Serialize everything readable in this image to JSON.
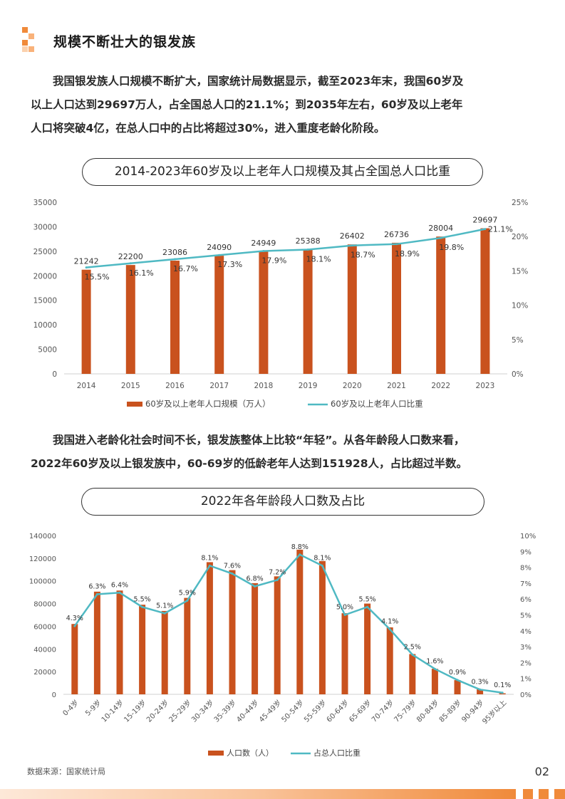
{
  "page": {
    "title": "规模不断壮大的银发族",
    "page_number": "02",
    "source": "数据来源：国家统计局",
    "colors": {
      "bar": "#c9521e",
      "line": "#4fb9c3",
      "accent": "#f08a3a"
    }
  },
  "paragraph1": {
    "lines": [
      "我国银发族人口规模不断扩大，国家统计局数据显示，截至2023年末，我国60岁及",
      "以上人口达到29697万人，占全国总人口的21.1%；到2035年左右，60岁及以上老年",
      "人口将突破4亿，在总人口中的占比将超过30%，进入重度老龄化阶段。"
    ]
  },
  "paragraph2": {
    "lines": [
      "我国进入老龄化社会时间不长，银发族整体上比较“年轻”。从各年龄段人口数来看，",
      "2022年60岁及以上银发族中，60-69岁的低龄老年人达到151928人，占比超过半数。"
    ]
  },
  "chart_data": [
    {
      "type": "bar",
      "title": "2014-2023年60岁及以上老年人口规模及其占全国总人口比重",
      "categories": [
        "2014",
        "2015",
        "2016",
        "2017",
        "2018",
        "2019",
        "2020",
        "2021",
        "2022",
        "2023"
      ],
      "series": [
        {
          "name": "60岁及以上老年人口规模（万人）",
          "type": "bar",
          "axis": "left",
          "values": [
            21242,
            22200,
            23086,
            24090,
            24949,
            25388,
            26402,
            26736,
            28004,
            29697
          ],
          "labels": [
            "21242",
            "22200",
            "23086",
            "24090",
            "24949",
            "25388",
            "26402",
            "26736",
            "28004",
            "29697"
          ]
        },
        {
          "name": "60岁及以上老年人口比重",
          "type": "line",
          "axis": "right",
          "values": [
            15.5,
            16.1,
            16.7,
            17.3,
            17.9,
            18.1,
            18.7,
            18.9,
            19.8,
            21.1
          ],
          "labels": [
            "15.5%",
            "16.1%",
            "16.7%",
            "17.3%",
            "17.9%",
            "18.1%",
            "18.7%",
            "18.9%",
            "19.8%",
            "21.1%"
          ]
        }
      ],
      "ylim_left": [
        0,
        35000
      ],
      "yticks_left": [
        "0",
        "5000",
        "10000",
        "15000",
        "20000",
        "25000",
        "30000",
        "35000"
      ],
      "ylim_right": [
        0,
        25
      ],
      "yticks_right": [
        "0%",
        "5%",
        "10%",
        "15%",
        "20%",
        "25%"
      ],
      "legend": "bottom"
    },
    {
      "type": "bar",
      "title": "2022年各年龄段人口数及占比",
      "categories": [
        "0-4岁",
        "5-9岁",
        "10-14岁",
        "15-19岁",
        "20-24岁",
        "25-29岁",
        "30-34岁",
        "35-39岁",
        "40-44岁",
        "45-49岁",
        "50-54岁",
        "55-59岁",
        "60-64岁",
        "65-69岁",
        "70-74岁",
        "75-79岁",
        "80-84岁",
        "85-89岁",
        "90-94岁",
        "95岁以上"
      ],
      "series": [
        {
          "name": "人口数（人）",
          "type": "bar",
          "axis": "left",
          "values": [
            62000,
            90500,
            91500,
            79000,
            73500,
            85000,
            116500,
            109500,
            98000,
            104000,
            127500,
            117500,
            71500,
            80000,
            59000,
            35500,
            22500,
            12500,
            4500,
            900
          ]
        },
        {
          "name": "占总人口比重",
          "type": "line",
          "axis": "right",
          "values": [
            4.3,
            6.3,
            6.4,
            5.5,
            5.1,
            5.9,
            8.1,
            7.6,
            6.8,
            7.2,
            8.8,
            8.1,
            5.0,
            5.5,
            4.1,
            2.5,
            1.6,
            0.9,
            0.3,
            0.1
          ],
          "labels": [
            "4.3%",
            "6.3%",
            "6.4%",
            "5.5%",
            "5.1%",
            "5.9%",
            "8.1%",
            "7.6%",
            "6.8%",
            "7.2%",
            "8.8%",
            "8.1%",
            "5.0%",
            "5.5%",
            "4.1%",
            "2.5%",
            "1.6%",
            "0.9%",
            "0.3%",
            "0.1%"
          ]
        }
      ],
      "ylim_left": [
        0,
        140000
      ],
      "yticks_left": [
        "0",
        "20000",
        "40000",
        "60000",
        "80000",
        "100000",
        "120000",
        "140000"
      ],
      "ylim_right": [
        0,
        10
      ],
      "yticks_right": [
        "0%",
        "1%",
        "2%",
        "3%",
        "4%",
        "5%",
        "6%",
        "7%",
        "8%",
        "9%",
        "10%"
      ],
      "legend": "bottom"
    }
  ]
}
